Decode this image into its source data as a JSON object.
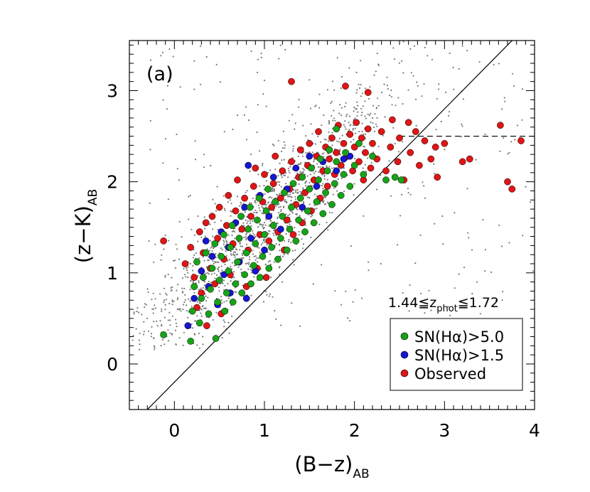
{
  "chart_data": {
    "type": "scatter",
    "panel_label": "(a)",
    "xlabel": {
      "main": "(B−z)",
      "sub": "AB"
    },
    "ylabel": {
      "main": "(z−K)",
      "sub": "AB"
    },
    "xlim": [
      -0.5,
      4.0
    ],
    "ylim": [
      -0.5,
      3.55
    ],
    "xticks": [
      {
        "value": 0,
        "label": "0"
      },
      {
        "value": 1,
        "label": "1"
      },
      {
        "value": 2,
        "label": "2"
      },
      {
        "value": 3,
        "label": "3"
      },
      {
        "value": 4,
        "label": "4"
      }
    ],
    "yticks": [
      {
        "value": 0,
        "label": "0"
      },
      {
        "value": 1,
        "label": "1"
      },
      {
        "value": 2,
        "label": "2"
      },
      {
        "value": 3,
        "label": "3"
      }
    ],
    "x_minor_step": 0.1,
    "y_minor_step": 0.1,
    "redshift_annotation": {
      "prefix": "1.44≦z",
      "sub": "phot",
      "suffix": "≦1.72"
    },
    "lines": [
      {
        "name": "BzK selection line",
        "style": "solid",
        "points": [
          [
            -0.5,
            -0.7
          ],
          [
            4.0,
            3.8
          ]
        ]
      },
      {
        "name": "passive boundary",
        "style": "dashed",
        "points": [
          [
            2.5,
            2.5
          ],
          [
            4.0,
            2.5
          ]
        ]
      }
    ],
    "legend": {
      "placement": "lower-right",
      "entries": [
        {
          "label": "SN(Hα)>5.0",
          "color": "#17a317"
        },
        {
          "label": "SN(Hα)>1.5",
          "color": "#1515d2"
        },
        {
          "label": "Observed",
          "color": "#e01515"
        }
      ]
    },
    "series": [
      {
        "name": "Observed",
        "color": "#e01515",
        "points": [
          [
            -0.12,
            1.35
          ],
          [
            0.12,
            1.1
          ],
          [
            0.18,
            1.28
          ],
          [
            0.22,
            0.95
          ],
          [
            0.25,
            0.62
          ],
          [
            0.28,
            1.45
          ],
          [
            0.3,
            0.78
          ],
          [
            0.32,
            1.22
          ],
          [
            0.35,
            1.55
          ],
          [
            0.36,
            0.42
          ],
          [
            0.4,
            1.05
          ],
          [
            0.42,
            1.62
          ],
          [
            0.45,
            0.88
          ],
          [
            0.48,
            1.38
          ],
          [
            0.5,
            1.72
          ],
          [
            0.52,
            0.55
          ],
          [
            0.55,
            1.15
          ],
          [
            0.58,
            1.52
          ],
          [
            0.6,
            1.85
          ],
          [
            0.62,
            0.98
          ],
          [
            0.65,
            1.32
          ],
          [
            0.68,
            1.68
          ],
          [
            0.7,
            2.02
          ],
          [
            0.72,
            1.12
          ],
          [
            0.75,
            1.48
          ],
          [
            0.78,
            1.82
          ],
          [
            0.8,
            0.85
          ],
          [
            0.82,
            1.25
          ],
          [
            0.85,
            1.62
          ],
          [
            0.88,
            1.95
          ],
          [
            0.9,
            2.15
          ],
          [
            0.92,
            1.05
          ],
          [
            0.95,
            1.42
          ],
          [
            0.98,
            1.78
          ],
          [
            1.0,
            2.08
          ],
          [
            1.02,
            0.95
          ],
          [
            1.05,
            1.35
          ],
          [
            1.08,
            1.72
          ],
          [
            1.1,
            1.98
          ],
          [
            1.12,
            2.28
          ],
          [
            1.15,
            1.45
          ],
          [
            1.18,
            1.82
          ],
          [
            1.2,
            2.12
          ],
          [
            1.22,
            1.25
          ],
          [
            1.25,
            1.58
          ],
          [
            1.28,
            1.92
          ],
          [
            1.3,
            2.22
          ],
          [
            1.3,
            3.1
          ],
          [
            1.32,
            1.42
          ],
          [
            1.35,
            1.75
          ],
          [
            1.38,
            2.05
          ],
          [
            1.4,
            2.35
          ],
          [
            1.42,
            1.55
          ],
          [
            1.45,
            1.88
          ],
          [
            1.48,
            2.18
          ],
          [
            1.5,
            2.42
          ],
          [
            1.52,
            1.68
          ],
          [
            1.55,
            2.02
          ],
          [
            1.58,
            2.28
          ],
          [
            1.6,
            2.55
          ],
          [
            1.62,
            1.82
          ],
          [
            1.65,
            2.12
          ],
          [
            1.68,
            2.38
          ],
          [
            1.7,
            1.95
          ],
          [
            1.72,
            2.25
          ],
          [
            1.75,
            2.48
          ],
          [
            1.78,
            2.08
          ],
          [
            1.8,
            2.32
          ],
          [
            1.82,
            2.62
          ],
          [
            1.85,
            2.18
          ],
          [
            1.88,
            2.42
          ],
          [
            1.9,
            3.05
          ],
          [
            1.92,
            2.28
          ],
          [
            1.95,
            2.52
          ],
          [
            1.98,
            2.12
          ],
          [
            2.0,
            2.38
          ],
          [
            2.02,
            2.65
          ],
          [
            2.05,
            2.22
          ],
          [
            2.08,
            2.48
          ],
          [
            2.1,
            2.02
          ],
          [
            2.12,
            2.32
          ],
          [
            2.15,
            2.58
          ],
          [
            2.15,
            2.98
          ],
          [
            2.18,
            2.15
          ],
          [
            2.2,
            2.42
          ],
          [
            2.25,
            2.25
          ],
          [
            2.3,
            2.55
          ],
          [
            2.35,
            2.12
          ],
          [
            2.4,
            2.38
          ],
          [
            2.42,
            2.68
          ],
          [
            2.48,
            2.22
          ],
          [
            2.5,
            2.48
          ],
          [
            2.55,
            2.02
          ],
          [
            2.6,
            2.65
          ],
          [
            2.62,
            2.32
          ],
          [
            2.68,
            2.55
          ],
          [
            2.72,
            2.18
          ],
          [
            2.78,
            2.45
          ],
          [
            2.85,
            2.25
          ],
          [
            2.9,
            2.38
          ],
          [
            2.92,
            2.05
          ],
          [
            3.0,
            2.42
          ],
          [
            3.2,
            2.22
          ],
          [
            3.28,
            2.25
          ],
          [
            3.62,
            2.62
          ],
          [
            3.7,
            2.0
          ],
          [
            3.75,
            1.92
          ],
          [
            3.85,
            2.45
          ]
        ]
      },
      {
        "name": "SN(Hα)>1.5",
        "color": "#1515d2",
        "points": [
          [
            0.15,
            0.42
          ],
          [
            0.22,
            0.72
          ],
          [
            0.3,
            1.02
          ],
          [
            0.35,
            1.35
          ],
          [
            0.38,
            0.85
          ],
          [
            0.42,
            1.18
          ],
          [
            0.48,
            0.65
          ],
          [
            0.52,
            1.45
          ],
          [
            0.55,
            0.98
          ],
          [
            0.6,
            1.28
          ],
          [
            0.62,
            0.78
          ],
          [
            0.68,
            1.55
          ],
          [
            0.72,
            1.12
          ],
          [
            0.78,
            1.72
          ],
          [
            0.8,
            0.72
          ],
          [
            0.82,
            2.18
          ],
          [
            0.85,
            1.38
          ],
          [
            0.9,
            1.02
          ],
          [
            0.95,
            1.85
          ],
          [
            1.0,
            1.25
          ],
          [
            1.05,
            1.62
          ],
          [
            1.1,
            2.05
          ],
          [
            1.18,
            1.48
          ],
          [
            1.25,
            1.92
          ],
          [
            1.35,
            2.15
          ],
          [
            1.42,
            1.72
          ],
          [
            1.5,
            2.28
          ],
          [
            1.58,
            1.95
          ],
          [
            1.65,
            2.22
          ],
          [
            1.72,
            2.35
          ],
          [
            1.8,
            2.12
          ],
          [
            1.88,
            2.25
          ],
          [
            1.95,
            2.28
          ]
        ]
      },
      {
        "name": "SN(Hα)>5.0",
        "color": "#17a317",
        "points": [
          [
            -0.12,
            0.32
          ],
          [
            0.18,
            0.25
          ],
          [
            0.2,
            0.58
          ],
          [
            0.22,
            0.85
          ],
          [
            0.25,
            1.12
          ],
          [
            0.28,
            0.45
          ],
          [
            0.3,
            0.72
          ],
          [
            0.32,
            0.95
          ],
          [
            0.35,
            1.22
          ],
          [
            0.38,
            0.55
          ],
          [
            0.4,
            0.82
          ],
          [
            0.42,
            1.05
          ],
          [
            0.45,
            1.32
          ],
          [
            0.46,
            0.28
          ],
          [
            0.48,
            0.68
          ],
          [
            0.5,
            0.92
          ],
          [
            0.52,
            1.18
          ],
          [
            0.55,
            1.42
          ],
          [
            0.56,
            0.58
          ],
          [
            0.58,
            0.78
          ],
          [
            0.6,
            1.02
          ],
          [
            0.62,
            1.28
          ],
          [
            0.64,
            1.52
          ],
          [
            0.65,
            0.68
          ],
          [
            0.68,
            0.88
          ],
          [
            0.7,
            1.12
          ],
          [
            0.72,
            1.38
          ],
          [
            0.74,
            1.62
          ],
          [
            0.75,
            0.78
          ],
          [
            0.78,
            0.98
          ],
          [
            0.8,
            1.22
          ],
          [
            0.82,
            1.48
          ],
          [
            0.84,
            1.72
          ],
          [
            0.85,
            0.88
          ],
          [
            0.88,
            1.08
          ],
          [
            0.9,
            1.32
          ],
          [
            0.92,
            1.58
          ],
          [
            0.94,
            1.82
          ],
          [
            0.95,
            0.95
          ],
          [
            0.98,
            1.18
          ],
          [
            1.0,
            1.42
          ],
          [
            1.02,
            1.68
          ],
          [
            1.04,
            1.92
          ],
          [
            1.05,
            1.05
          ],
          [
            1.08,
            1.28
          ],
          [
            1.1,
            1.52
          ],
          [
            1.12,
            1.78
          ],
          [
            1.15,
            1.15
          ],
          [
            1.18,
            1.38
          ],
          [
            1.2,
            1.62
          ],
          [
            1.22,
            1.88
          ],
          [
            1.25,
            1.25
          ],
          [
            1.28,
            1.48
          ],
          [
            1.3,
            1.72
          ],
          [
            1.32,
            1.98
          ],
          [
            1.35,
            1.35
          ],
          [
            1.38,
            1.58
          ],
          [
            1.4,
            1.82
          ],
          [
            1.42,
            2.05
          ],
          [
            1.45,
            1.45
          ],
          [
            1.48,
            1.68
          ],
          [
            1.5,
            1.92
          ],
          [
            1.52,
            2.15
          ],
          [
            1.55,
            1.55
          ],
          [
            1.58,
            1.78
          ],
          [
            1.6,
            2.02
          ],
          [
            1.62,
            2.25
          ],
          [
            1.65,
            1.65
          ],
          [
            1.68,
            1.88
          ],
          [
            1.7,
            2.12
          ],
          [
            1.72,
            2.35
          ],
          [
            1.75,
            1.75
          ],
          [
            1.78,
            1.98
          ],
          [
            1.8,
            2.22
          ],
          [
            1.8,
            2.58
          ],
          [
            1.85,
            1.85
          ],
          [
            1.88,
            2.08
          ],
          [
            1.9,
            2.32
          ],
          [
            1.95,
            1.95
          ],
          [
            2.0,
            2.18
          ],
          [
            2.05,
            2.42
          ],
          [
            2.1,
            2.08
          ],
          [
            2.2,
            2.28
          ],
          [
            2.35,
            2.02
          ],
          [
            2.45,
            2.05
          ],
          [
            2.52,
            2.02
          ]
        ]
      }
    ]
  }
}
